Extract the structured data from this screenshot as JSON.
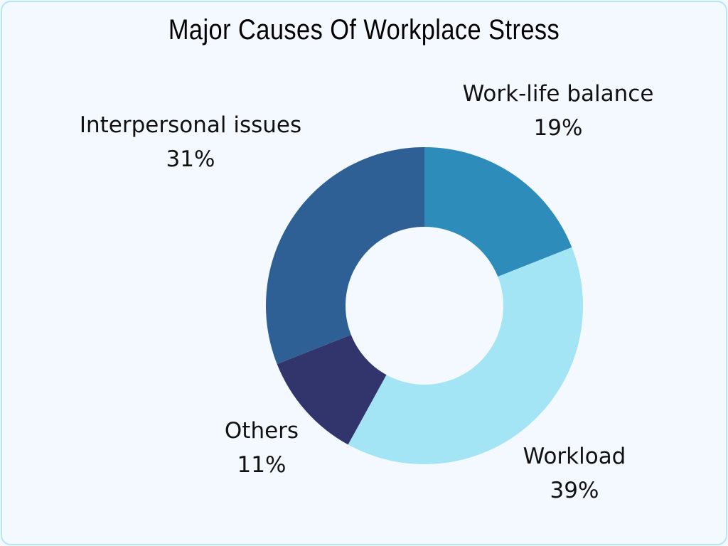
{
  "chart_data": {
    "type": "pie",
    "subtype": "donut",
    "title": "Major Causes Of Workplace Stress",
    "categories": [
      "Work-life balance",
      "Workload",
      "Others",
      "Interpersonal issues"
    ],
    "values": [
      19,
      39,
      11,
      31
    ],
    "unit": "%",
    "colors": [
      "#2d8cba",
      "#a3e4f5",
      "#32356c",
      "#2e6096"
    ],
    "start_angle": "12 o'clock",
    "direction": "clockwise",
    "labels": [
      {
        "name": "Work-life balance",
        "value_text": "19%"
      },
      {
        "name": "Workload",
        "value_text": "39%"
      },
      {
        "name": "Others",
        "value_text": "11%"
      },
      {
        "name": "Interpersonal issues",
        "value_text": "31%"
      }
    ]
  }
}
